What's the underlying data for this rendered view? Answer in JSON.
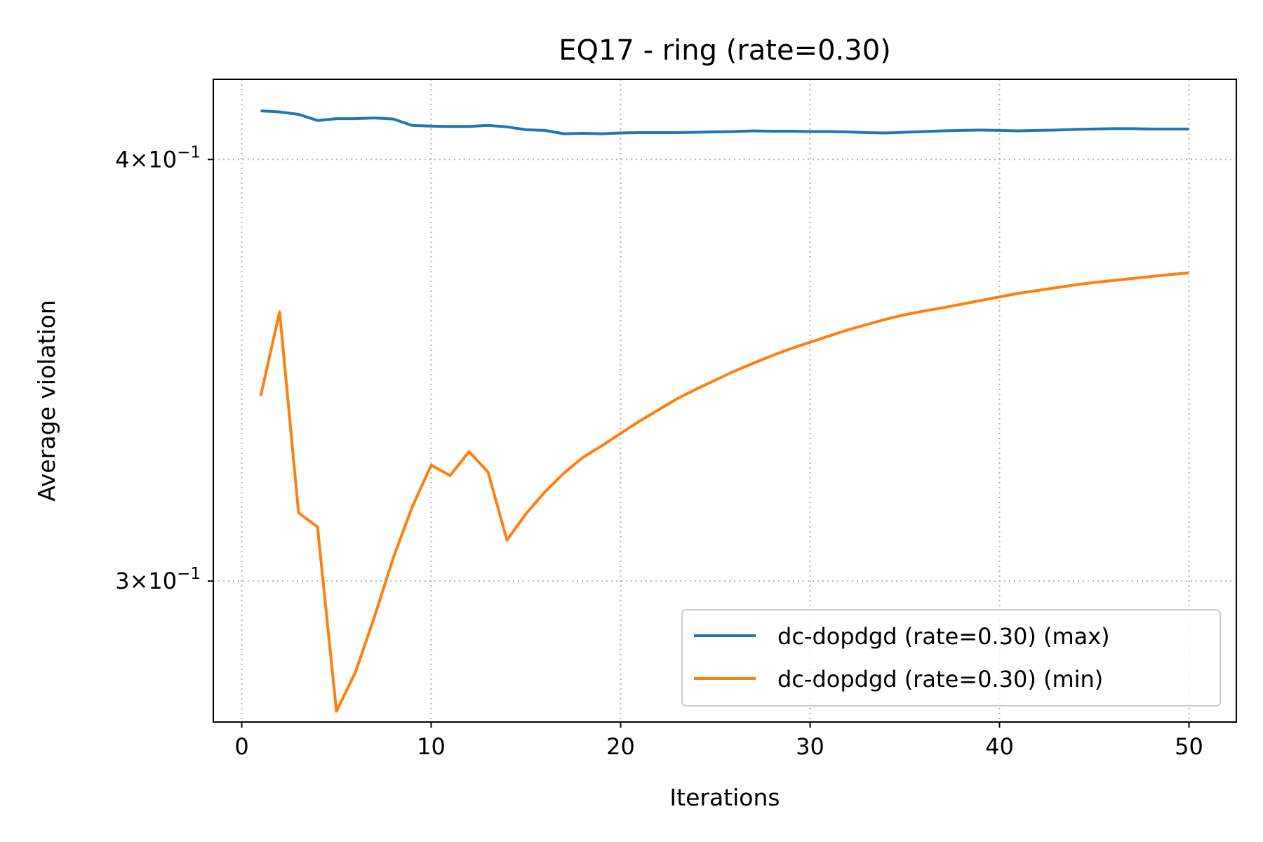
{
  "chart_data": {
    "type": "line",
    "title": "EQ17 - ring (rate=0.30)",
    "xlabel": "Iterations",
    "ylabel": "Average violation",
    "xlim": [
      -1.5,
      52.5
    ],
    "ylim": [
      0.2725,
      0.4225
    ],
    "yscale": "log",
    "grid": true,
    "legend_position": "lower-right",
    "x_ticks": [
      0,
      10,
      20,
      30,
      40,
      50
    ],
    "x_tick_labels": [
      "0",
      "10",
      "20",
      "30",
      "40",
      "50"
    ],
    "y_ticks": [
      0.3,
      0.4
    ],
    "y_tick_labels": [
      {
        "base": "3",
        "times": "×",
        "mant": "10",
        "exp": "−1"
      },
      {
        "base": "4",
        "times": "×",
        "mant": "10",
        "exp": "−1"
      }
    ],
    "x": [
      1,
      2,
      3,
      4,
      5,
      6,
      7,
      8,
      9,
      10,
      11,
      12,
      13,
      14,
      15,
      16,
      17,
      18,
      19,
      20,
      21,
      22,
      23,
      24,
      25,
      26,
      27,
      28,
      29,
      30,
      31,
      32,
      33,
      34,
      35,
      36,
      37,
      38,
      39,
      40,
      41,
      42,
      43,
      44,
      45,
      46,
      47,
      48,
      49,
      50
    ],
    "series": [
      {
        "name": "dc-dopdgd (rate=0.30) (max)",
        "color": "#1f77b4",
        "values": [
          0.4135,
          0.4132,
          0.4125,
          0.4108,
          0.4113,
          0.4113,
          0.4115,
          0.4112,
          0.4094,
          0.4092,
          0.4091,
          0.4091,
          0.4094,
          0.409,
          0.4082,
          0.408,
          0.4071,
          0.4072,
          0.4071,
          0.4073,
          0.4074,
          0.4074,
          0.4074,
          0.4075,
          0.4076,
          0.4077,
          0.4079,
          0.4078,
          0.4078,
          0.4077,
          0.4077,
          0.4076,
          0.4074,
          0.4073,
          0.4075,
          0.4077,
          0.4079,
          0.408,
          0.4081,
          0.408,
          0.4079,
          0.408,
          0.4081,
          0.4083,
          0.4084,
          0.4085,
          0.4085,
          0.4084,
          0.4084,
          0.4084
        ]
      },
      {
        "name": "dc-dopdgd (rate=0.30) (min)",
        "color": "#ff7f0e",
        "values": [
          0.3404,
          0.3605,
          0.3143,
          0.3113,
          0.2745,
          0.2819,
          0.2927,
          0.3048,
          0.3156,
          0.3247,
          0.3224,
          0.3277,
          0.3232,
          0.3085,
          0.3141,
          0.3188,
          0.3229,
          0.3264,
          0.329,
          0.3318,
          0.3346,
          0.3372,
          0.3398,
          0.342,
          0.3441,
          0.3462,
          0.3481,
          0.3499,
          0.3516,
          0.3531,
          0.3546,
          0.3561,
          0.3574,
          0.3587,
          0.3598,
          0.3607,
          0.3615,
          0.3624,
          0.3633,
          0.3642,
          0.3651,
          0.3658,
          0.3665,
          0.3672,
          0.3678,
          0.3683,
          0.3688,
          0.3693,
          0.3698,
          0.3702
        ]
      }
    ]
  }
}
